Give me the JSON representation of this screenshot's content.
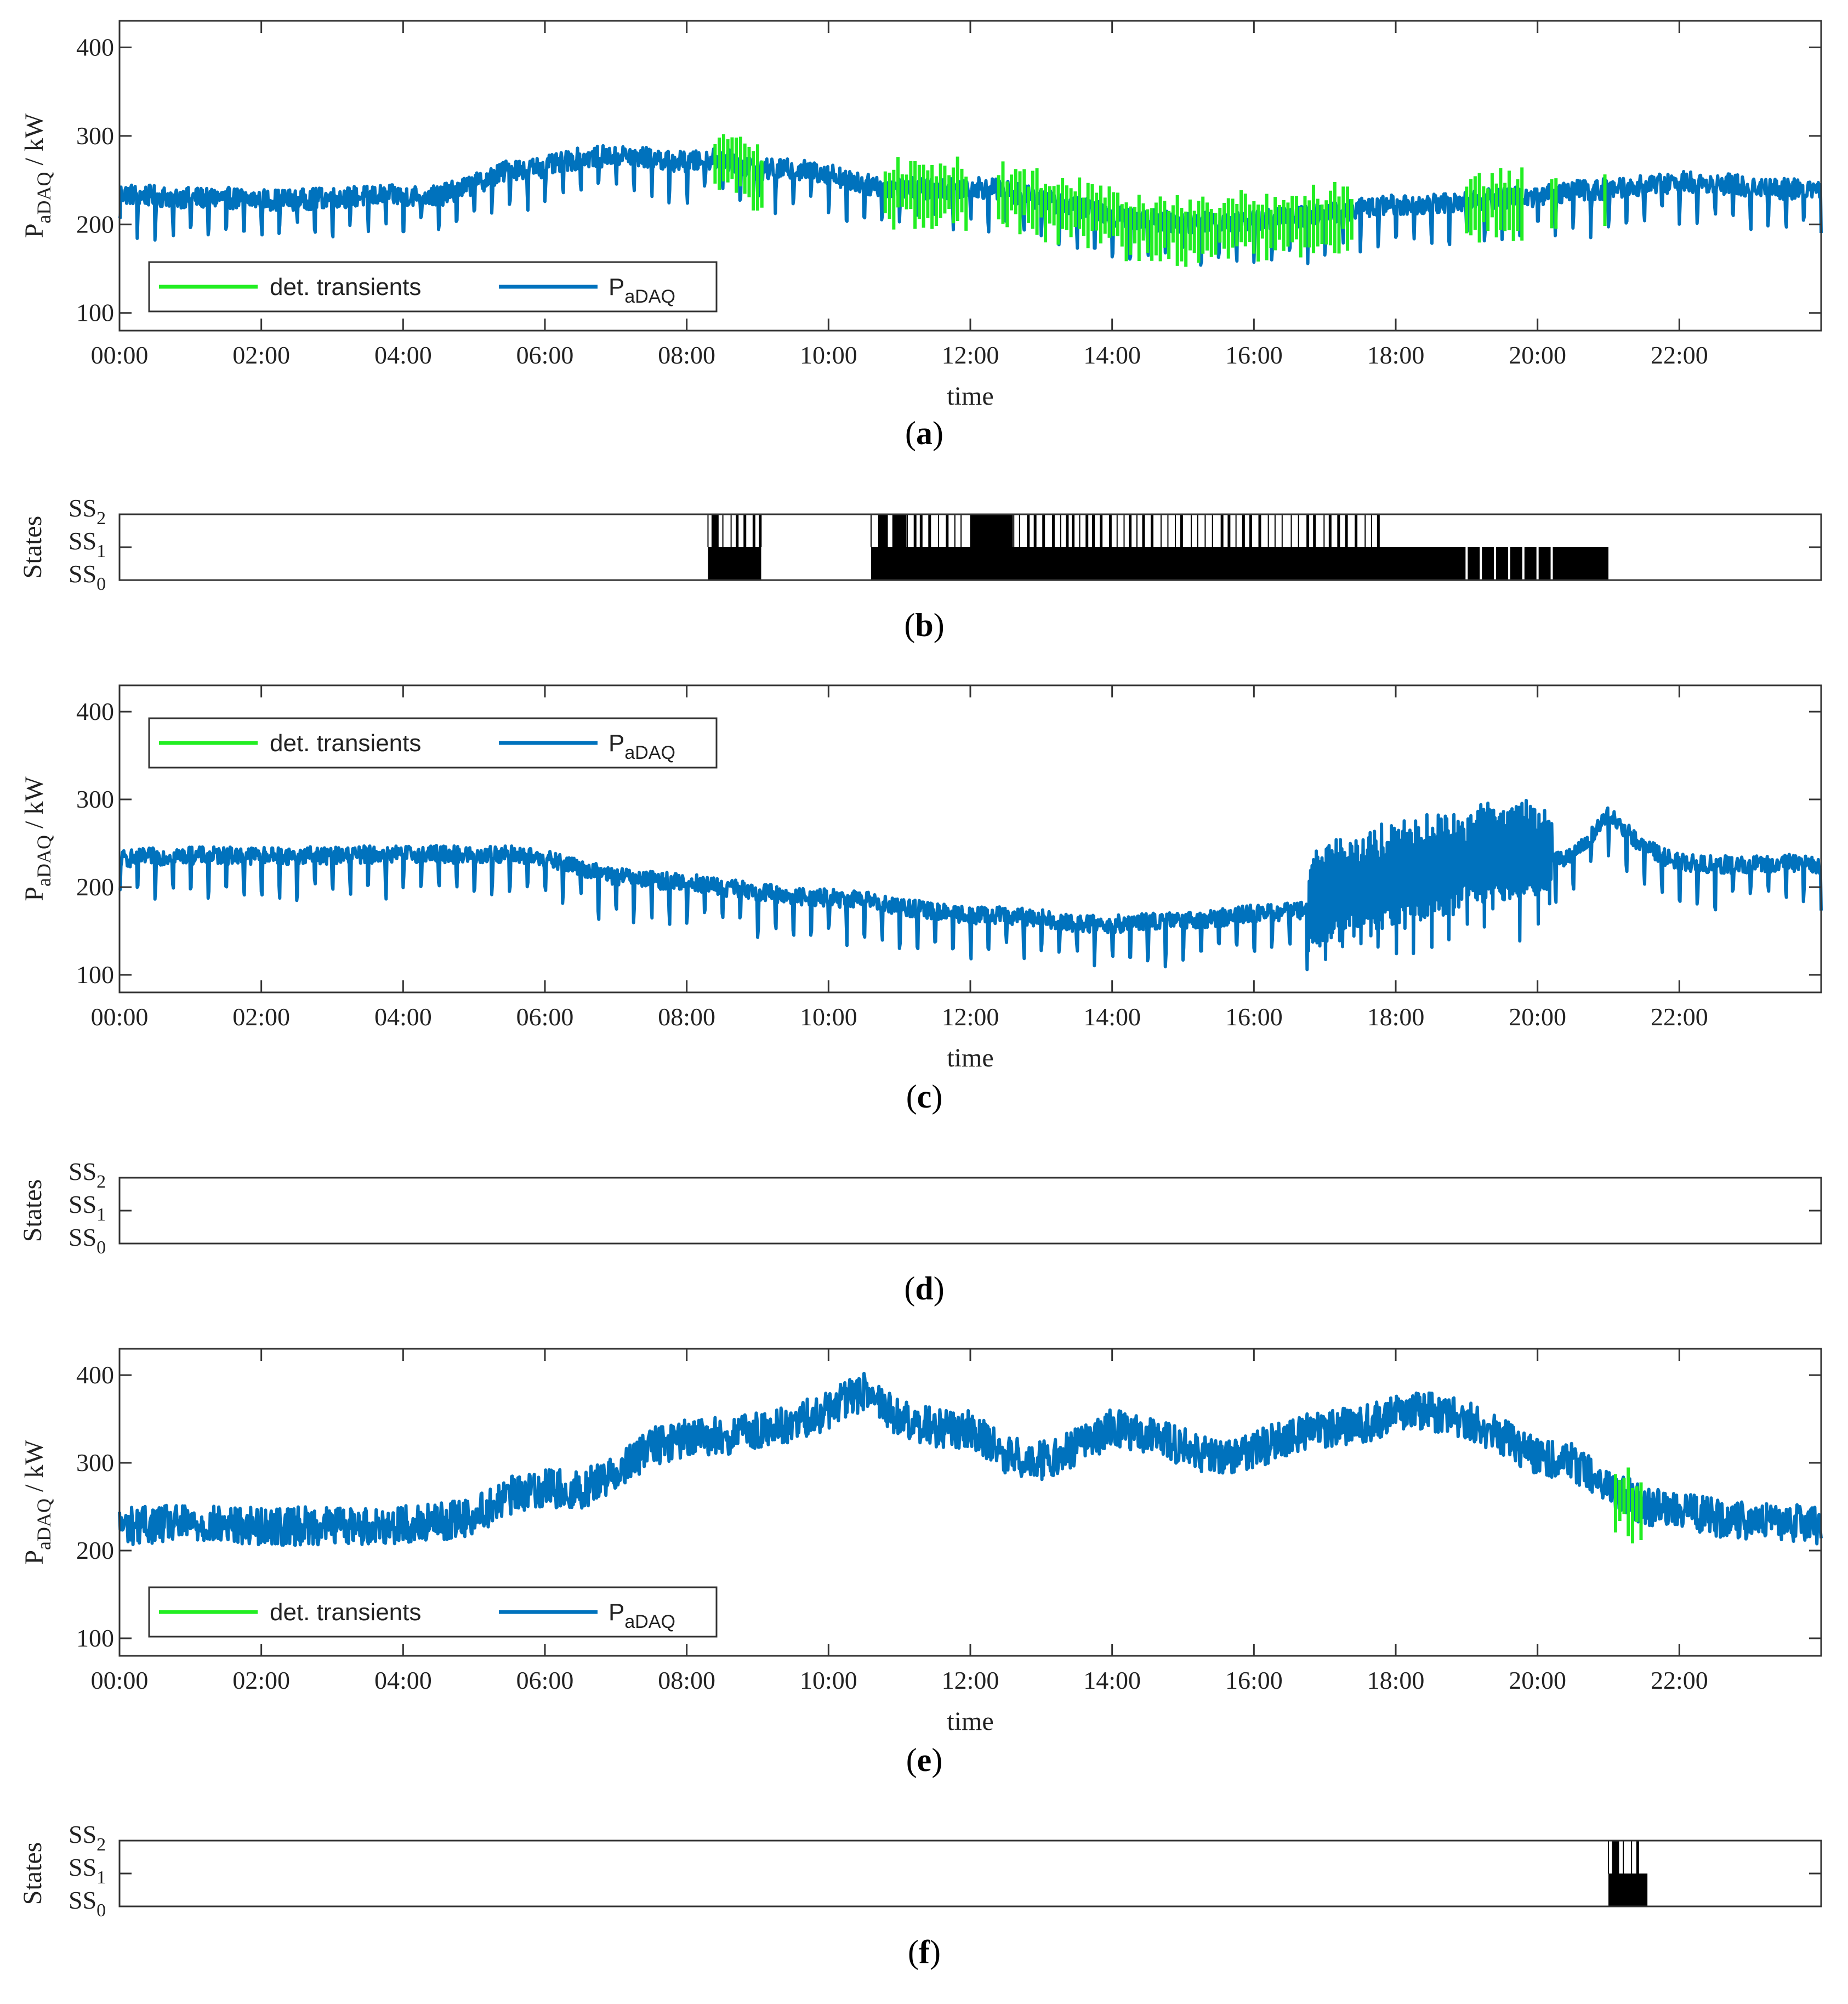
{
  "colors": {
    "power": "#0072bd",
    "transients": "#22ee22",
    "states": "#000000",
    "axis": "#333333"
  },
  "chart_data": [
    {
      "panel": "a",
      "type": "line",
      "caption_letter": "a",
      "xlabel": "time",
      "ylabel_main": "P",
      "ylabel_sub": "aDAQ",
      "ylabel_unit": "/ kW",
      "x_ticks": [
        "00:00",
        "02:00",
        "04:00",
        "06:00",
        "08:00",
        "10:00",
        "12:00",
        "14:00",
        "16:00",
        "18:00",
        "20:00",
        "22:00"
      ],
      "y_ticks": [
        100,
        200,
        300,
        400
      ],
      "xlim_hours": [
        0,
        24
      ],
      "ylim": [
        80,
        430
      ],
      "legend": {
        "placement": "lower-left",
        "entries": [
          "det. transients",
          "P"
        ],
        "p_sub": "aDAQ"
      },
      "series": [
        {
          "name": "P",
          "color_key": "power",
          "x_hours": [
            0,
            0.5,
            1,
            1.5,
            2,
            2.5,
            3,
            3.5,
            4,
            4.5,
            5,
            5.5,
            6,
            6.5,
            7,
            7.5,
            8,
            8.5,
            9,
            9.5,
            10,
            10.5,
            11,
            11.5,
            12,
            12.5,
            13,
            13.5,
            14,
            14.5,
            15,
            15.5,
            16,
            16.5,
            17,
            17.5,
            18,
            18.5,
            19,
            19.5,
            20,
            20.5,
            21,
            21.5,
            22,
            22.5,
            23,
            23.5,
            24
          ],
          "y": [
            235,
            232,
            230,
            230,
            228,
            228,
            230,
            232,
            233,
            232,
            245,
            262,
            265,
            275,
            278,
            275,
            270,
            275,
            262,
            262,
            258,
            245,
            242,
            240,
            243,
            238,
            228,
            220,
            210,
            205,
            202,
            202,
            205,
            208,
            212,
            218,
            222,
            222,
            226,
            230,
            232,
            238,
            240,
            245,
            248,
            247,
            243,
            240,
            240
          ],
          "spike_down_interval_h": 0.25,
          "spike_depth": 45,
          "noise": 12
        },
        {
          "name": "det. transients",
          "color_key": "transients",
          "segments_hours": [
            [
              8.4,
              9.1
            ],
            [
              10.8,
              12.0
            ],
            [
              12.4,
              17.4
            ],
            [
              19.0,
              19.8
            ],
            [
              20.2,
              20.3
            ],
            [
              20.95,
              21.0
            ]
          ]
        }
      ]
    },
    {
      "panel": "b",
      "type": "state-raster",
      "caption_letter": "b",
      "ylabel": "States",
      "state_labels": [
        {
          "main": "SS",
          "sub": "2"
        },
        {
          "main": "SS",
          "sub": "1"
        },
        {
          "main": "SS",
          "sub": "0"
        }
      ],
      "xlim_hours": [
        0,
        24
      ],
      "ss1_blocks_hours": [
        [
          8.3,
          9.05
        ],
        [
          10.6,
          21.0
        ]
      ],
      "ss2_blocks_hours": [
        [
          8.35,
          8.45
        ],
        [
          10.7,
          10.8
        ],
        [
          10.9,
          11.1
        ],
        [
          12.0,
          12.6
        ]
      ],
      "ss2_line_regions_hours": [
        [
          8.3,
          9.05
        ],
        [
          10.6,
          17.8
        ]
      ],
      "gap_lines_hours": [
        19.0,
        19.2,
        19.4,
        19.6,
        19.8,
        20.0,
        20.2
      ]
    },
    {
      "panel": "c",
      "type": "line",
      "caption_letter": "c",
      "xlabel": "time",
      "ylabel_main": "P",
      "ylabel_sub": "aDAQ",
      "ylabel_unit": "/ kW",
      "x_ticks": [
        "00:00",
        "02:00",
        "04:00",
        "06:00",
        "08:00",
        "10:00",
        "12:00",
        "14:00",
        "16:00",
        "18:00",
        "20:00",
        "22:00"
      ],
      "y_ticks": [
        100,
        200,
        300,
        400
      ],
      "xlim_hours": [
        0,
        24
      ],
      "ylim": [
        80,
        430
      ],
      "legend": {
        "placement": "top-left",
        "entries": [
          "det. transients",
          "P"
        ],
        "p_sub": "aDAQ"
      },
      "series": [
        {
          "name": "P",
          "color_key": "power",
          "x_hours": [
            0,
            0.5,
            1,
            1.5,
            2,
            2.5,
            3,
            3.5,
            4,
            4.5,
            5,
            5.5,
            6,
            6.5,
            7,
            7.5,
            8,
            8.5,
            9,
            9.5,
            10,
            10.5,
            11,
            11.5,
            12,
            12.5,
            13,
            13.5,
            14,
            14.5,
            15,
            15.5,
            16,
            16.5,
            16.75,
            17,
            17.5,
            18,
            18.5,
            19,
            19.5,
            20,
            20.2,
            20.5,
            21,
            21.5,
            22,
            22.5,
            23,
            23.5,
            24
          ],
          "y": [
            232,
            235,
            236,
            236,
            236,
            236,
            236,
            237,
            238,
            238,
            236,
            238,
            232,
            222,
            212,
            208,
            206,
            200,
            195,
            190,
            188,
            185,
            178,
            172,
            168,
            168,
            165,
            158,
            158,
            160,
            162,
            165,
            170,
            172,
            175,
            195,
            205,
            212,
            222,
            232,
            240,
            245,
            230,
            235,
            282,
            245,
            228,
            226,
            225,
            228,
            225
          ],
          "spike_down_interval_h": 0.25,
          "spike_depth": 45,
          "noise": 10,
          "dense_region_hours": [
            16.75,
            20.2
          ],
          "dense_amplitude": 55
        }
      ]
    },
    {
      "panel": "d",
      "type": "state-raster",
      "caption_letter": "d",
      "ylabel": "States",
      "state_labels": [
        {
          "main": "SS",
          "sub": "2"
        },
        {
          "main": "SS",
          "sub": "1"
        },
        {
          "main": "SS",
          "sub": "0"
        }
      ],
      "xlim_hours": [
        0,
        24
      ],
      "ss1_blocks_hours": [],
      "ss2_blocks_hours": [],
      "ss2_line_regions_hours": [],
      "gap_lines_hours": []
    },
    {
      "panel": "e",
      "type": "line",
      "caption_letter": "e",
      "xlabel": "time",
      "ylabel_main": "P",
      "ylabel_sub": "aDAQ",
      "ylabel_unit": "/ kW",
      "x_ticks": [
        "00:00",
        "02:00",
        "04:00",
        "06:00",
        "08:00",
        "10:00",
        "12:00",
        "14:00",
        "16:00",
        "18:00",
        "20:00",
        "22:00"
      ],
      "y_ticks": [
        100,
        200,
        300,
        400
      ],
      "xlim_hours": [
        0,
        24
      ],
      "ylim": [
        80,
        430
      ],
      "legend": {
        "placement": "lower-left",
        "entries": [
          "det. transients",
          "P"
        ],
        "p_sub": "aDAQ"
      },
      "series": [
        {
          "name": "P",
          "color_key": "power",
          "x_hours": [
            0,
            0.5,
            1,
            1.5,
            2,
            2.5,
            3,
            3.5,
            4,
            4.5,
            5,
            5.5,
            6,
            6.5,
            7,
            7.5,
            8,
            8.5,
            9,
            9.5,
            10,
            10.5,
            11,
            11.5,
            12,
            12.5,
            13,
            13.5,
            14,
            14.5,
            15,
            15.5,
            16,
            16.5,
            17,
            17.5,
            18,
            18.5,
            19,
            19.5,
            20,
            20.5,
            21,
            21.5,
            22,
            22.5,
            23,
            23.5,
            24
          ],
          "y": [
            228,
            230,
            230,
            229,
            228,
            228,
            229,
            228,
            230,
            232,
            240,
            262,
            272,
            268,
            290,
            318,
            328,
            330,
            335,
            345,
            360,
            382,
            350,
            340,
            338,
            308,
            302,
            318,
            340,
            330,
            318,
            302,
            315,
            330,
            338,
            342,
            358,
            358,
            350,
            330,
            305,
            300,
            275,
            250,
            245,
            238,
            232,
            232,
            228
          ],
          "noise": 22
        },
        {
          "name": "det. transients",
          "color_key": "transients",
          "segments_hours": [
            [
              21.1,
              21.5
            ]
          ]
        }
      ]
    },
    {
      "panel": "f",
      "type": "state-raster",
      "caption_letter": "f",
      "ylabel": "States",
      "state_labels": [
        {
          "main": "SS",
          "sub": "2"
        },
        {
          "main": "SS",
          "sub": "1"
        },
        {
          "main": "SS",
          "sub": "0"
        }
      ],
      "xlim_hours": [
        0,
        24
      ],
      "ss1_blocks_hours": [
        [
          21.0,
          21.55
        ]
      ],
      "ss2_blocks_hours": [
        [
          21.05,
          21.15
        ]
      ],
      "ss2_line_regions_hours": [
        [
          21.0,
          21.5
        ]
      ],
      "gap_lines_hours": []
    }
  ]
}
